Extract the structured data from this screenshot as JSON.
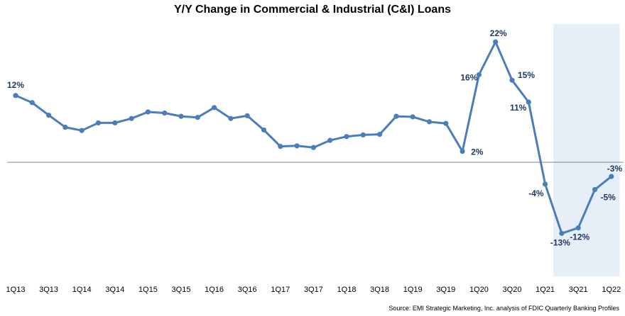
{
  "chart_data": {
    "type": "line",
    "title": "Y/Y Change in Commercial & Industrial (C&I) Loans",
    "source": "Source: EMI Strategic Marketing, Inc. analysis of FDIC Quarterly Banking Profiles",
    "xlabel": "",
    "ylabel": "",
    "ylim": [
      -17,
      25
    ],
    "grid": false,
    "legend": "none",
    "series_color": "#4a7ebb",
    "highlight_color": "#e6eef7",
    "highlight_range": [
      "2Q21",
      "1Q22"
    ],
    "x": [
      "1Q13",
      "2Q13",
      "3Q13",
      "4Q13",
      "1Q14",
      "2Q14",
      "3Q14",
      "4Q14",
      "1Q15",
      "2Q15",
      "3Q15",
      "4Q15",
      "1Q16",
      "2Q16",
      "3Q16",
      "4Q16",
      "1Q17",
      "2Q17",
      "3Q17",
      "4Q17",
      "1Q18",
      "2Q18",
      "3Q18",
      "4Q18",
      "1Q19",
      "2Q19",
      "3Q19",
      "4Q19",
      "1Q20",
      "2Q20",
      "3Q20",
      "4Q20",
      "1Q21",
      "2Q21",
      "3Q21",
      "4Q21",
      "1Q22"
    ],
    "tick_labels": [
      "1Q13",
      "3Q13",
      "1Q14",
      "3Q14",
      "1Q15",
      "3Q15",
      "1Q16",
      "3Q16",
      "1Q17",
      "3Q17",
      "1Q18",
      "3Q18",
      "1Q19",
      "3Q19",
      "1Q20",
      "3Q20",
      "1Q21",
      "3Q21",
      "1Q22"
    ],
    "values": [
      12.2,
      10.9,
      8.6,
      6.4,
      5.8,
      7.2,
      7.2,
      8.0,
      9.2,
      9.0,
      8.4,
      8.2,
      10.0,
      8.0,
      8.5,
      5.9,
      2.9,
      3.0,
      2.7,
      4.0,
      4.7,
      5.0,
      5.1,
      8.4,
      8.3,
      7.4,
      7.1,
      2.0,
      16.0,
      22.0,
      15.0,
      11.0,
      -4.0,
      -13.0,
      -12.0,
      -5.0,
      -2.6
    ],
    "data_labels": [
      {
        "index": 0,
        "text": "12%"
      },
      {
        "index": 27,
        "text": "2%"
      },
      {
        "index": 28,
        "text": "16%"
      },
      {
        "index": 29,
        "text": "22%"
      },
      {
        "index": 30,
        "text": "15%"
      },
      {
        "index": 31,
        "text": "11%"
      },
      {
        "index": 32,
        "text": "-4%"
      },
      {
        "index": 33,
        "text": "-13%"
      },
      {
        "index": 34,
        "text": "-12%"
      },
      {
        "index": 35,
        "text": "-5%"
      },
      {
        "index": 36,
        "text": "-3%"
      }
    ]
  }
}
